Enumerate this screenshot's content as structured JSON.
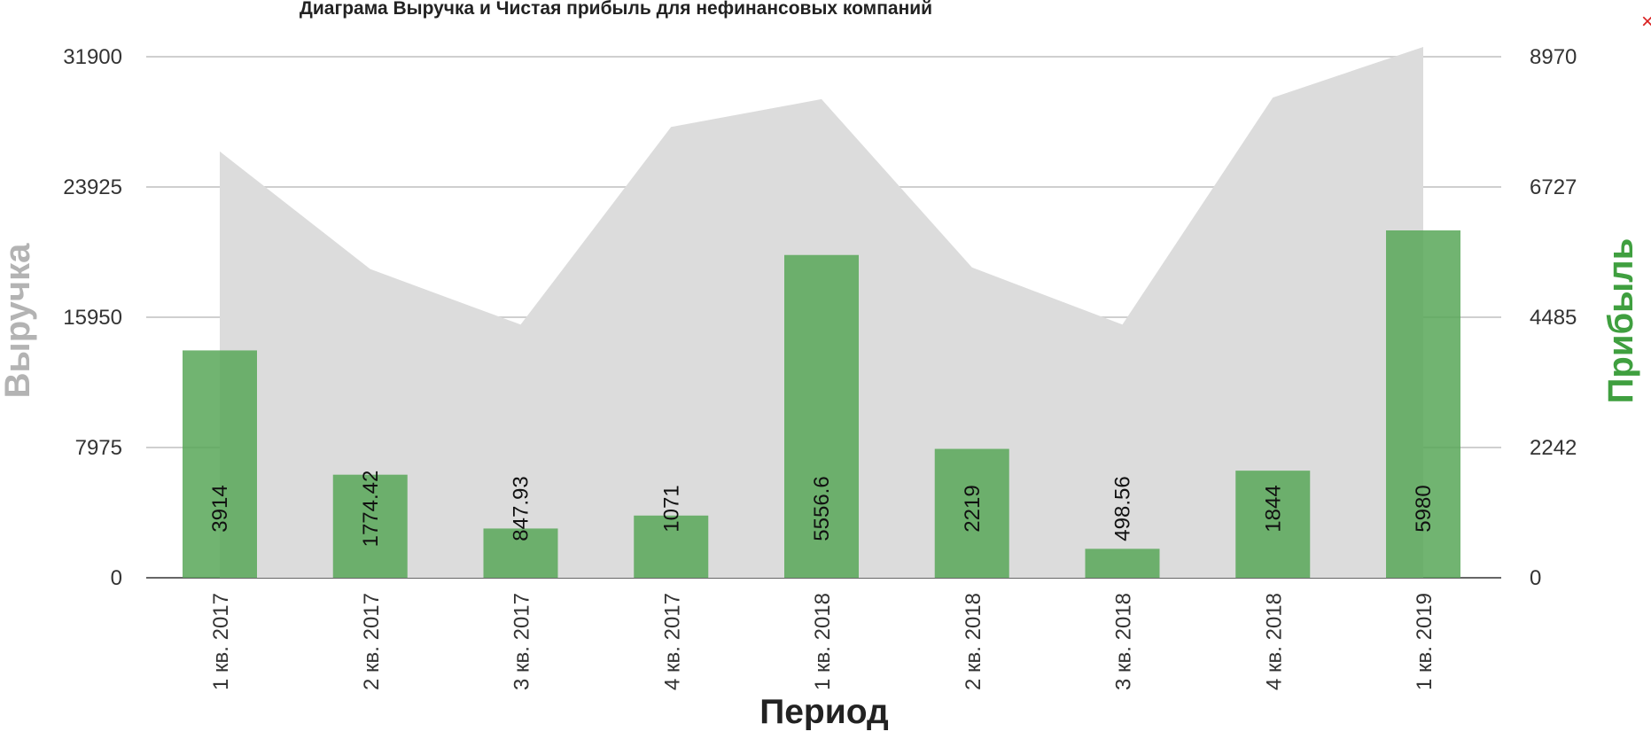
{
  "chart_data": {
    "type": "bar",
    "title": "Диаграма Выручка и Чистая прибыль для нефинансовых компаний",
    "xlabel": "Период",
    "ylabel_left": "Выручка",
    "ylabel_right": "Прибыль",
    "categories": [
      "1 кв. 2017",
      "2 кв. 2017",
      "3 кв. 2017",
      "4 кв. 2017",
      "1 кв. 2018",
      "2 кв. 2018",
      "3 кв. 2018",
      "4 кв. 2018",
      "1 кв. 2019"
    ],
    "left_ticks": [
      "0",
      "7975",
      "15950",
      "23925",
      "31900"
    ],
    "right_ticks": [
      "0",
      "2242",
      "4485",
      "6727",
      "8970"
    ],
    "left_ylim": [
      0,
      31900
    ],
    "right_ylim": [
      0,
      8970
    ],
    "series": [
      {
        "type": "area",
        "axis": "left",
        "color": "#dcdcdc",
        "values": [
          26100,
          18900,
          15500,
          27600,
          29300,
          19000,
          15500,
          29400,
          32500
        ]
      },
      {
        "type": "bar",
        "axis": "right",
        "color": "#5aa85a",
        "labels": [
          "3914",
          "1774.42",
          "847.93",
          "1071",
          "5556.6",
          "2219",
          "498.56",
          "1844",
          "5980"
        ],
        "values": [
          3914,
          1774.42,
          847.93,
          1071,
          5556.6,
          2219,
          498.56,
          1844,
          5980
        ]
      }
    ],
    "grid": true
  },
  "ui": {
    "close_symbol": "×"
  }
}
